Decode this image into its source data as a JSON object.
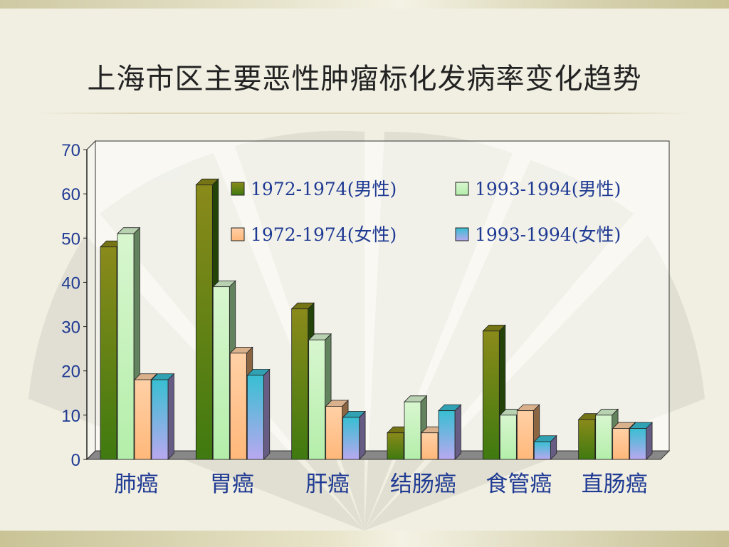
{
  "slide": {
    "title": "上海市区主要恶性肿瘤标化发病率变化趋势"
  },
  "colors": {
    "series": [
      "#3f7a10",
      "#b4eeaa",
      "#ffb87a",
      "#b9a8f0"
    ],
    "series_top": [
      "#8a8a1a",
      "#d8f6cf",
      "#ffd0a6",
      "#38bfd2"
    ]
  },
  "chart_data": {
    "type": "bar",
    "title": "",
    "xlabel": "",
    "ylabel": "",
    "ylim": [
      0,
      70
    ],
    "yticks": [
      0,
      10,
      20,
      30,
      40,
      50,
      60,
      70
    ],
    "grid": false,
    "legend_position": "top-right",
    "categories": [
      "肺癌",
      "胃癌",
      "肝癌",
      "结肠癌",
      "食管癌",
      "直肠癌"
    ],
    "series": [
      {
        "name": "1972-1974(男性)",
        "values": [
          48,
          62,
          34,
          6,
          29,
          9
        ]
      },
      {
        "name": "1993-1994(男性)",
        "values": [
          51,
          39,
          27,
          13,
          10,
          10
        ]
      },
      {
        "name": "1972-1974(女性)",
        "values": [
          18,
          24,
          12,
          6,
          11,
          7
        ]
      },
      {
        "name": "1993-1994(女性)",
        "values": [
          18,
          19,
          9.5,
          11,
          4,
          7
        ]
      }
    ]
  }
}
